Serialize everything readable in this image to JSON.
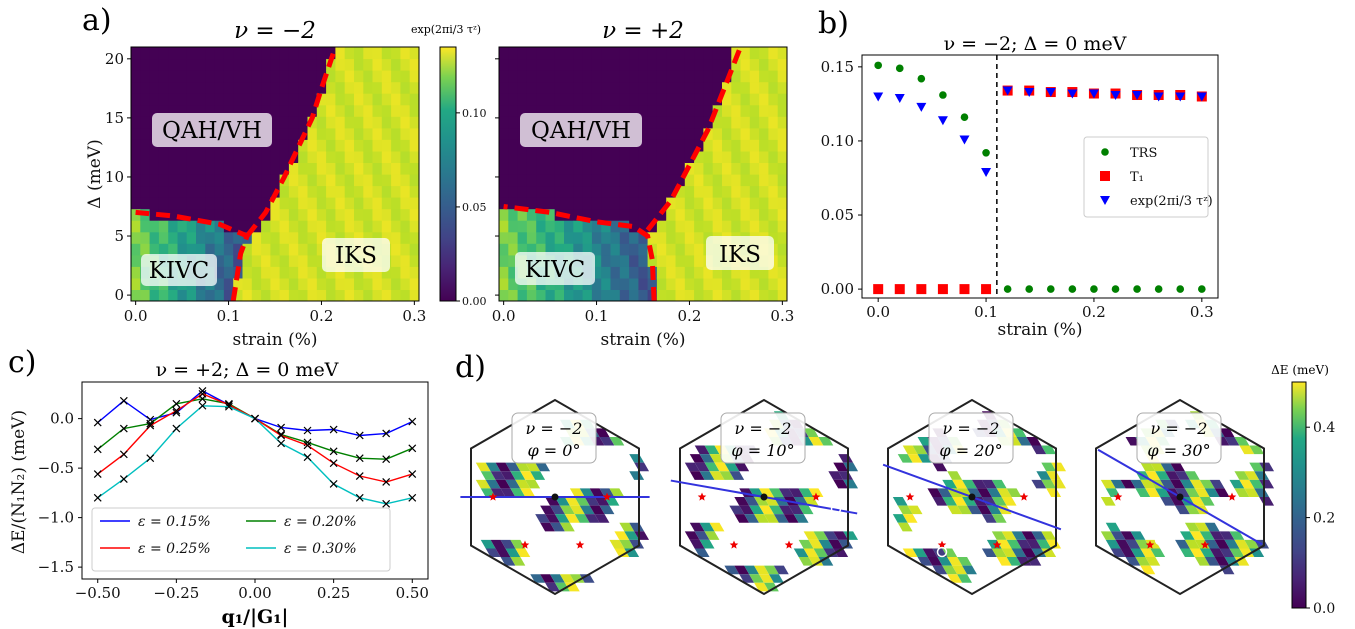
{
  "panels": {
    "a": "a)",
    "b": "b)",
    "c": "c)",
    "d": "d)"
  },
  "colors": {
    "red": "#ff0000",
    "green": "#008000",
    "blue": "#0000ff",
    "cyan": "#00bfbf",
    "viridis_low": "#440154",
    "viridis_high": "#fde725"
  },
  "chart_data": [
    {
      "id": "a_left",
      "type": "heatmap",
      "title": "ν = −2",
      "xlabel": "strain (%)",
      "ylabel": "Δ (meV)",
      "xticks": [
        "0.0",
        "0.1",
        "0.2",
        "0.3"
      ],
      "yticks": [
        "0",
        "5",
        "10",
        "15",
        "20"
      ],
      "xlim": [
        -0.005,
        0.305
      ],
      "ylim": [
        -0.5,
        21
      ],
      "phase_labels": [
        "QAH/VH",
        "KIVC",
        "IKS"
      ],
      "boundary": [
        [
          0.105,
          -0.5
        ],
        [
          0.108,
          1
        ],
        [
          0.113,
          3.5
        ],
        [
          0.12,
          5
        ],
        [
          0.09,
          6
        ],
        [
          0.04,
          6.7
        ],
        [
          0,
          7
        ],
        [
          0.12,
          5
        ],
        [
          0.14,
          7
        ],
        [
          0.16,
          10
        ],
        [
          0.175,
          12.5
        ],
        [
          0.19,
          15
        ],
        [
          0.2,
          17.5
        ],
        [
          0.215,
          21
        ]
      ]
    },
    {
      "id": "a_right",
      "type": "heatmap",
      "title": "ν = +2",
      "xlabel": "strain (%)",
      "xticks": [
        "0.0",
        "0.1",
        "0.2",
        "0.3"
      ],
      "xlim": [
        -0.005,
        0.305
      ],
      "ylim": [
        -0.5,
        21
      ],
      "phase_labels": [
        "QAH/VH",
        "KIVC",
        "IKS"
      ],
      "boundary": [
        [
          0.162,
          -0.5
        ],
        [
          0.16,
          3
        ],
        [
          0.155,
          5
        ],
        [
          0.14,
          5.8
        ],
        [
          0.1,
          6.2
        ],
        [
          0.05,
          7
        ],
        [
          0,
          7.5
        ],
        [
          0.155,
          5.5
        ],
        [
          0.18,
          8
        ],
        [
          0.2,
          11
        ],
        [
          0.22,
          14
        ],
        [
          0.24,
          18
        ],
        [
          0.255,
          21
        ]
      ]
    },
    {
      "id": "a_colorbar",
      "type": "colorbar",
      "label": "exp(2πi/3 τᶻ)",
      "ticks": [
        "0.00",
        "0.05",
        "0.10"
      ],
      "range": [
        0,
        0.135
      ]
    },
    {
      "id": "b",
      "type": "scatter",
      "title": "ν = −2; Δ = 0 meV",
      "xlabel": "strain (%)",
      "xticks": [
        "0.0",
        "0.1",
        "0.2",
        "0.3"
      ],
      "yticks": [
        "0.00",
        "0.05",
        "0.10",
        "0.15"
      ],
      "xlim": [
        -0.015,
        0.315
      ],
      "ylim": [
        -0.006,
        0.158
      ],
      "vline": 0.11,
      "x": [
        0,
        0.02,
        0.04,
        0.06,
        0.08,
        0.1,
        0.12,
        0.14,
        0.16,
        0.18,
        0.2,
        0.22,
        0.24,
        0.26,
        0.28,
        0.3
      ],
      "series": [
        {
          "name": "TRS",
          "marker": "circle",
          "color": "#008000",
          "values": [
            0.151,
            0.149,
            0.142,
            0.131,
            0.116,
            0.092,
            0,
            0,
            0,
            0,
            0,
            0,
            0,
            0,
            0,
            0
          ]
        },
        {
          "name": "T₁",
          "marker": "square",
          "color": "#ff0000",
          "values": [
            0,
            0,
            0,
            0,
            0,
            0,
            0.134,
            0.134,
            0.133,
            0.133,
            0.132,
            0.132,
            0.131,
            0.131,
            0.131,
            0.13
          ]
        },
        {
          "name": "exp(2πi/3 τᶻ)",
          "marker": "triangle",
          "color": "#0000ff",
          "values": [
            0.13,
            0.129,
            0.123,
            0.114,
            0.101,
            0.079,
            0.134,
            0.133,
            0.133,
            0.132,
            0.132,
            0.131,
            0.131,
            0.13,
            0.13,
            0.13
          ]
        }
      ],
      "legend": "center-right"
    },
    {
      "id": "c",
      "type": "line",
      "title": "ν = +2; Δ = 0 meV",
      "xlabel": "q₁/|G₁|",
      "ylabel": "ΔE/(N₁N₂)   (meV)",
      "xticks": [
        "−0.50",
        "−0.25",
        "0.00",
        "0.25",
        "0.50"
      ],
      "yticks": [
        "0.0",
        "−0.5",
        "−1.0",
        "−1.5"
      ],
      "xlim": [
        -0.55,
        0.55
      ],
      "ylim": [
        -1.62,
        0.37
      ],
      "x": [
        -0.5,
        -0.417,
        -0.333,
        -0.25,
        -0.167,
        -0.083,
        0,
        0.083,
        0.167,
        0.25,
        0.333,
        0.417,
        0.5
      ],
      "series": [
        {
          "name": "ε = 0.15%",
          "color": "#0000ff",
          "values": [
            -0.04,
            0.18,
            -0.01,
            0.06,
            0.28,
            0.14,
            0.0,
            -0.09,
            -0.12,
            -0.11,
            -0.17,
            -0.15,
            -0.03
          ]
        },
        {
          "name": "ε = 0.20%",
          "color": "#008000",
          "values": [
            -0.31,
            -0.1,
            -0.05,
            0.15,
            0.2,
            0.15,
            0.0,
            -0.16,
            -0.24,
            -0.33,
            -0.4,
            -0.41,
            -0.3
          ]
        },
        {
          "name": "ε = 0.25%",
          "color": "#ff0000",
          "values": [
            -0.56,
            -0.36,
            -0.07,
            0.08,
            0.25,
            0.14,
            0.0,
            -0.17,
            -0.27,
            -0.45,
            -0.58,
            -0.64,
            -0.56
          ]
        },
        {
          "name": "ε = 0.30%",
          "color": "#00bfbf",
          "values": [
            -0.8,
            -0.61,
            -0.4,
            -0.1,
            0.13,
            0.12,
            0.0,
            -0.25,
            -0.39,
            -0.66,
            -0.8,
            -0.86,
            -0.8
          ]
        }
      ],
      "legend": "lower-center"
    },
    {
      "id": "d",
      "type": "heatmap",
      "colorbar_label": "ΔE (meV)",
      "colorbar_ticks": [
        "0.0",
        "0.2",
        "0.4"
      ],
      "colorbar_range": [
        0,
        0.5
      ],
      "insets": [
        {
          "nu": "ν = −2",
          "phi": "φ = 0°"
        },
        {
          "nu": "ν = −2",
          "phi": "φ = 10°"
        },
        {
          "nu": "ν = −2",
          "phi": "φ = 20°"
        },
        {
          "nu": "ν = −2",
          "phi": "φ = 30°"
        }
      ]
    }
  ]
}
